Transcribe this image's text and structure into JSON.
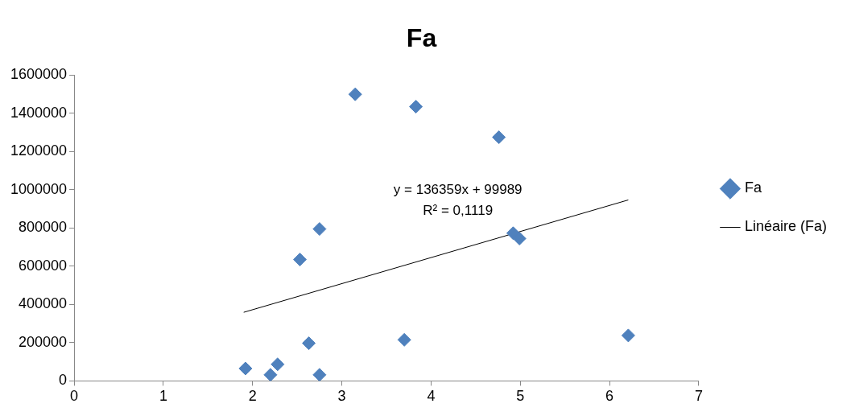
{
  "chart_data": {
    "type": "scatter",
    "title": "Fa",
    "xlim": [
      0,
      7
    ],
    "xticks": [
      0,
      1,
      2,
      3,
      4,
      5,
      6,
      7
    ],
    "ylim": [
      0,
      1600000
    ],
    "yticks": [
      0,
      200000,
      400000,
      600000,
      800000,
      1000000,
      1200000,
      1400000,
      1600000
    ],
    "grid": false,
    "legend": "right",
    "series": [
      {
        "name": "Fa",
        "color": "#4f81bd",
        "marker": "diamond",
        "x": [
          1.92,
          2.2,
          2.28,
          2.53,
          2.63,
          2.75,
          2.75,
          3.15,
          3.7,
          3.83,
          4.76,
          4.92,
          4.99,
          6.21
        ],
        "values": [
          65000,
          32000,
          87000,
          635000,
          197000,
          795000,
          32000,
          1500000,
          215000,
          1435000,
          1275000,
          773000,
          745000,
          238000
        ]
      },
      {
        "name": "Linéaire (Fa)",
        "color": "#000000",
        "type": "line",
        "marker": "none",
        "x": [
          1.9,
          6.21
        ],
        "values": [
          359000,
          947000
        ]
      }
    ],
    "annotations": [
      "y = 136359x + 99989",
      "R² = 0,1119"
    ]
  }
}
